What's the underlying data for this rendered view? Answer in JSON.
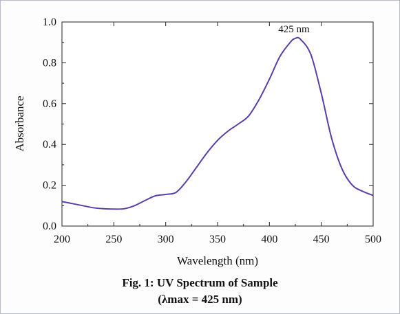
{
  "chart_data": {
    "type": "line",
    "xlabel": "Wavelength (nm)",
    "ylabel": "Absorbance",
    "xlim": [
      200,
      500
    ],
    "ylim": [
      0.0,
      1.0
    ],
    "x_ticks": [
      200,
      250,
      300,
      350,
      400,
      450,
      500
    ],
    "y_ticks": [
      "0.0",
      "0.2",
      "0.4",
      "0.6",
      "0.8",
      "1.0"
    ],
    "grid": false,
    "line_color": "#5a3da8",
    "series": [
      {
        "x": [
          200,
          210,
          220,
          230,
          240,
          250,
          260,
          270,
          280,
          290,
          300,
          310,
          320,
          330,
          340,
          350,
          360,
          370,
          380,
          390,
          400,
          410,
          420,
          425,
          430,
          440,
          450,
          460,
          470,
          480,
          490,
          500
        ],
        "y": [
          0.12,
          0.11,
          0.1,
          0.09,
          0.085,
          0.083,
          0.085,
          0.1,
          0.125,
          0.148,
          0.155,
          0.165,
          0.22,
          0.29,
          0.36,
          0.42,
          0.465,
          0.5,
          0.54,
          0.62,
          0.72,
          0.83,
          0.9,
          0.92,
          0.915,
          0.84,
          0.65,
          0.43,
          0.28,
          0.2,
          0.17,
          0.15
        ]
      }
    ],
    "annotation": "425 nm",
    "annotation_x": 425,
    "annotation_y": 0.92
  },
  "caption": {
    "line1": "Fig. 1: UV Spectrum of Sample",
    "line2": "(λmax = 425 nm)"
  }
}
